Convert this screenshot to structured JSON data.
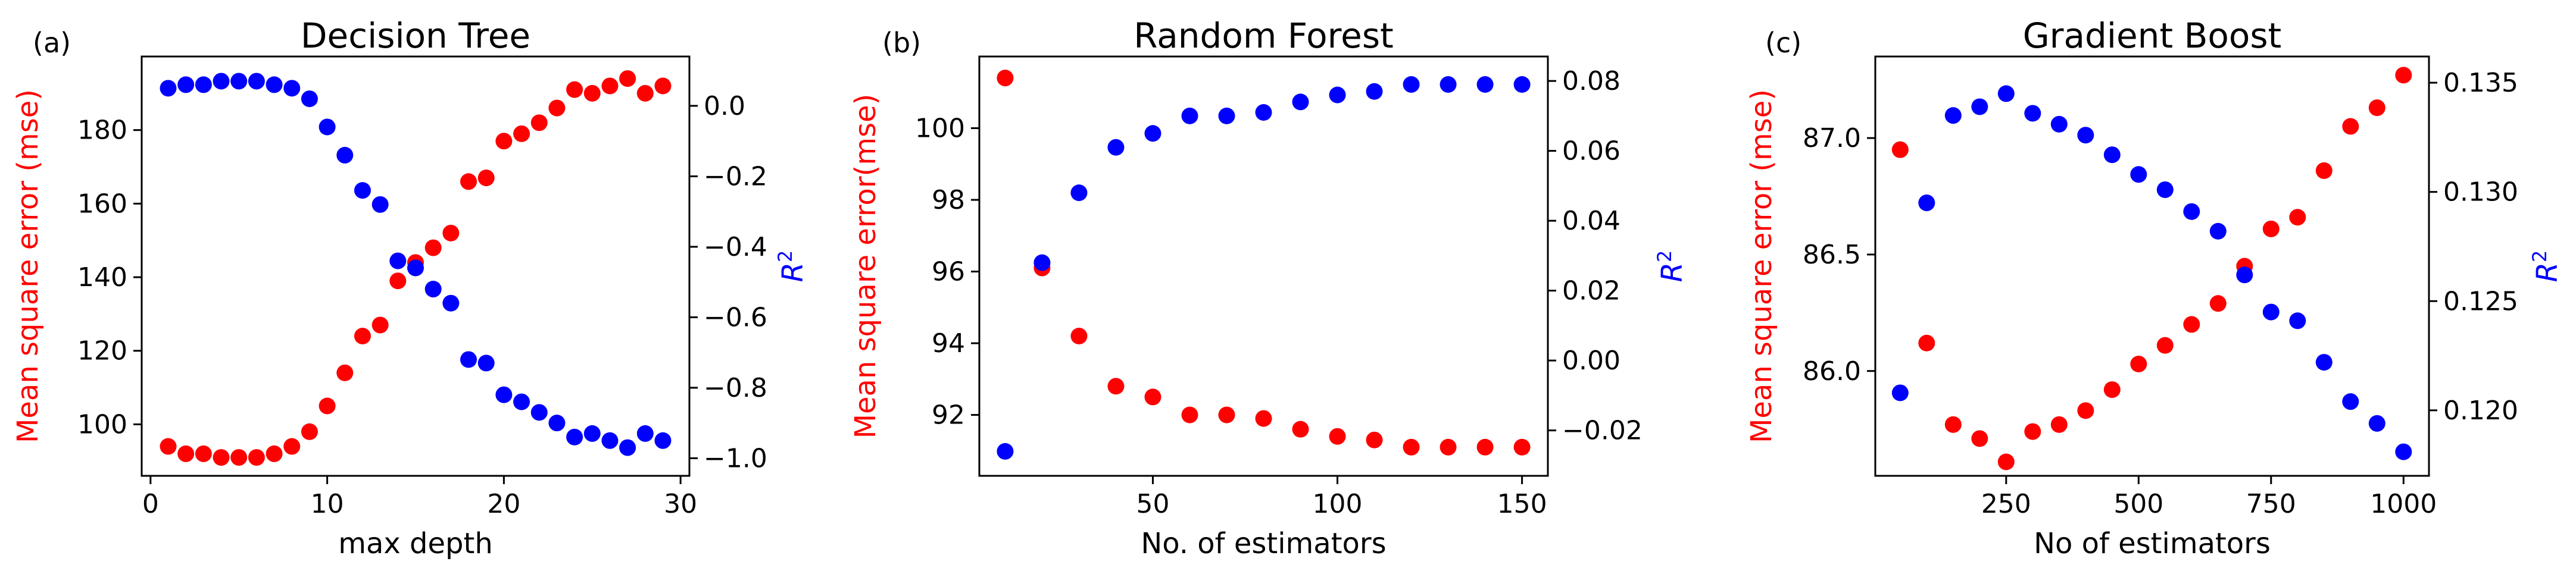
{
  "chart_data": [
    {
      "type": "scatter",
      "panel_label": "(a)",
      "title": "Decision Tree",
      "xlabel": "max depth",
      "ylabel": "Mean square error (mse)",
      "ylabel_right": "R",
      "ylabel_right_sup": "2",
      "xlim": [
        -0.5,
        30.5
      ],
      "ylim": [
        86,
        200
      ],
      "ylim_right": [
        -1.05,
        0.14
      ],
      "x_ticks": [
        0,
        10,
        20,
        30
      ],
      "x_tick_labels": [
        "0",
        "10",
        "20",
        "30"
      ],
      "y_ticks": [
        100,
        120,
        140,
        160,
        180
      ],
      "y_tick_labels": [
        "100",
        "120",
        "140",
        "160",
        "180"
      ],
      "y_ticks_right": [
        -1.0,
        -0.8,
        -0.6,
        -0.4,
        -0.2,
        0.0
      ],
      "y_tick_labels_right": [
        "−1.0",
        "−0.8",
        "−0.6",
        "−0.4",
        "−0.2",
        "0.0"
      ],
      "grid": false,
      "series": [
        {
          "axis": "left",
          "color": "#ff0000",
          "x": [
            1,
            2,
            3,
            4,
            5,
            6,
            7,
            8,
            9,
            10,
            11,
            12,
            13,
            14,
            15,
            16,
            17,
            18,
            19,
            20,
            21,
            22,
            23,
            24,
            25,
            26,
            27,
            28,
            29
          ],
          "y": [
            94,
            92,
            92,
            91,
            91,
            91,
            92,
            94,
            98,
            105,
            114,
            124,
            127,
            139,
            144,
            148,
            152,
            166,
            167,
            177,
            179,
            182,
            186,
            191,
            190,
            192,
            194,
            190,
            192
          ]
        },
        {
          "axis": "right",
          "color": "#0000ff",
          "x": [
            1,
            2,
            3,
            4,
            5,
            6,
            7,
            8,
            9,
            10,
            11,
            12,
            13,
            14,
            15,
            16,
            17,
            18,
            19,
            20,
            21,
            22,
            23,
            24,
            25,
            26,
            27,
            28,
            29
          ],
          "y": [
            0.05,
            0.06,
            0.06,
            0.07,
            0.07,
            0.07,
            0.06,
            0.05,
            0.02,
            -0.06,
            -0.14,
            -0.24,
            -0.28,
            -0.44,
            -0.46,
            -0.52,
            -0.56,
            -0.72,
            -0.73,
            -0.82,
            -0.84,
            -0.87,
            -0.9,
            -0.94,
            -0.93,
            -0.95,
            -0.97,
            -0.93,
            -0.95
          ]
        }
      ]
    },
    {
      "type": "scatter",
      "panel_label": "(b)",
      "title": "Random Forest",
      "xlabel": "No. of estimators",
      "ylabel": "Mean square error(mse)",
      "ylabel_right": "R",
      "ylabel_right_sup": "2",
      "xlim": [
        3,
        157
      ],
      "ylim": [
        90.3,
        102
      ],
      "ylim_right": [
        -0.033,
        0.087
      ],
      "x_ticks": [
        50,
        100,
        150
      ],
      "x_tick_labels": [
        "50",
        "100",
        "150"
      ],
      "y_ticks": [
        92,
        94,
        96,
        98,
        100
      ],
      "y_tick_labels": [
        "92",
        "94",
        "96",
        "98",
        "100"
      ],
      "y_ticks_right": [
        -0.02,
        0.0,
        0.02,
        0.04,
        0.06,
        0.08
      ],
      "y_tick_labels_right": [
        "−0.02",
        "0.00",
        "0.02",
        "0.04",
        "0.06",
        "0.08"
      ],
      "grid": false,
      "series": [
        {
          "axis": "left",
          "color": "#ff0000",
          "x": [
            10,
            20,
            30,
            40,
            50,
            60,
            70,
            80,
            90,
            100,
            110,
            120,
            130,
            140,
            150
          ],
          "y": [
            101.4,
            96.1,
            94.2,
            92.8,
            92.5,
            92.0,
            92.0,
            91.9,
            91.6,
            91.4,
            91.3,
            91.1,
            91.1,
            91.1,
            91.1
          ]
        },
        {
          "axis": "right",
          "color": "#0000ff",
          "x": [
            10,
            20,
            30,
            40,
            50,
            60,
            70,
            80,
            90,
            100,
            110,
            120,
            130,
            140,
            150
          ],
          "y": [
            -0.026,
            0.028,
            0.048,
            0.061,
            0.065,
            0.07,
            0.07,
            0.071,
            0.074,
            0.076,
            0.077,
            0.079,
            0.079,
            0.079,
            0.079
          ]
        }
      ]
    },
    {
      "type": "scatter",
      "panel_label": "(c)",
      "title": "Gradient Boost",
      "xlabel": "No of estimators",
      "ylabel": "Mean square error (mse)",
      "ylabel_right": "R",
      "ylabel_right_sup": "2",
      "xlim": [
        3,
        1048
      ],
      "ylim": [
        85.55,
        87.35
      ],
      "ylim_right": [
        0.117,
        0.1362
      ],
      "x_ticks": [
        250,
        500,
        750,
        1000
      ],
      "x_tick_labels": [
        "250",
        "500",
        "750",
        "1000"
      ],
      "y_ticks": [
        86.0,
        86.5,
        87.0
      ],
      "y_tick_labels": [
        "86.0",
        "86.5",
        "87.0"
      ],
      "y_ticks_right": [
        0.12,
        0.125,
        0.13,
        0.135
      ],
      "y_tick_labels_right": [
        "0.120",
        "0.125",
        "0.130",
        "0.135"
      ],
      "grid": false,
      "series": [
        {
          "axis": "left",
          "color": "#ff0000",
          "x": [
            50,
            100,
            150,
            200,
            250,
            300,
            350,
            400,
            450,
            500,
            550,
            600,
            650,
            700,
            750,
            800,
            850,
            900,
            950,
            1000
          ],
          "y": [
            86.95,
            86.12,
            85.77,
            85.71,
            85.61,
            85.74,
            85.77,
            85.83,
            85.92,
            86.03,
            86.11,
            86.2,
            86.29,
            86.45,
            86.61,
            86.66,
            86.86,
            87.05,
            87.13,
            87.27
          ]
        },
        {
          "axis": "right",
          "color": "#0000ff",
          "x": [
            50,
            100,
            150,
            200,
            250,
            300,
            350,
            400,
            450,
            500,
            550,
            600,
            650,
            700,
            750,
            800,
            850,
            900,
            950,
            1000
          ],
          "y": [
            0.1208,
            0.1295,
            0.1335,
            0.1339,
            0.1345,
            0.1336,
            0.1331,
            0.1326,
            0.1317,
            0.1308,
            0.1301,
            0.1291,
            0.1282,
            0.1262,
            0.1245,
            0.1241,
            0.1222,
            0.1204,
            0.1194,
            0.1181
          ]
        }
      ]
    }
  ]
}
